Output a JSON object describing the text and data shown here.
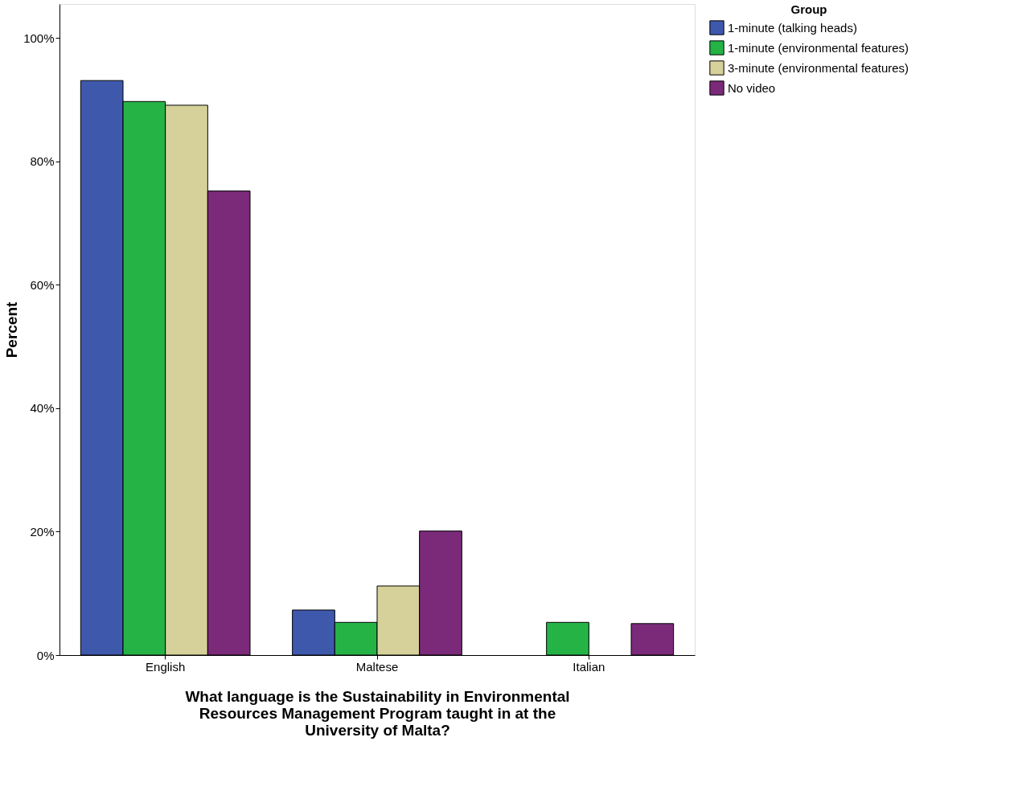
{
  "chart_data": {
    "type": "bar",
    "categories": [
      "English",
      "Maltese",
      "Italian"
    ],
    "series": [
      {
        "name": "1-minute (talking heads)",
        "color": "#3e58ac",
        "values": [
          93.1,
          7.3,
          null
        ]
      },
      {
        "name": "1-minute (environmental features)",
        "color": "#25b346",
        "values": [
          89.7,
          5.3,
          5.3
        ]
      },
      {
        "name": "3-minute (environmental features)",
        "color": "#d6d09a",
        "values": [
          89.1,
          11.2,
          null
        ]
      },
      {
        "name": "No video",
        "color": "#7b2a7a",
        "values": [
          75.2,
          20.1,
          5.1
        ]
      }
    ],
    "xlabel": "What language is the Sustainability in Environmental Resources Management Program taught in at the University of Malta?",
    "ylabel": "Percent",
    "legend_title": "Group",
    "legend": "top right",
    "grid": false,
    "ylim": [
      0,
      105.5
    ],
    "yticks": [
      {
        "value": 0,
        "label": "0%"
      },
      {
        "value": 20,
        "label": "20%"
      },
      {
        "value": 40,
        "label": "40%"
      },
      {
        "value": 60,
        "label": "60%"
      },
      {
        "value": 80,
        "label": "80%"
      },
      {
        "value": 100,
        "label": "100%"
      }
    ]
  }
}
